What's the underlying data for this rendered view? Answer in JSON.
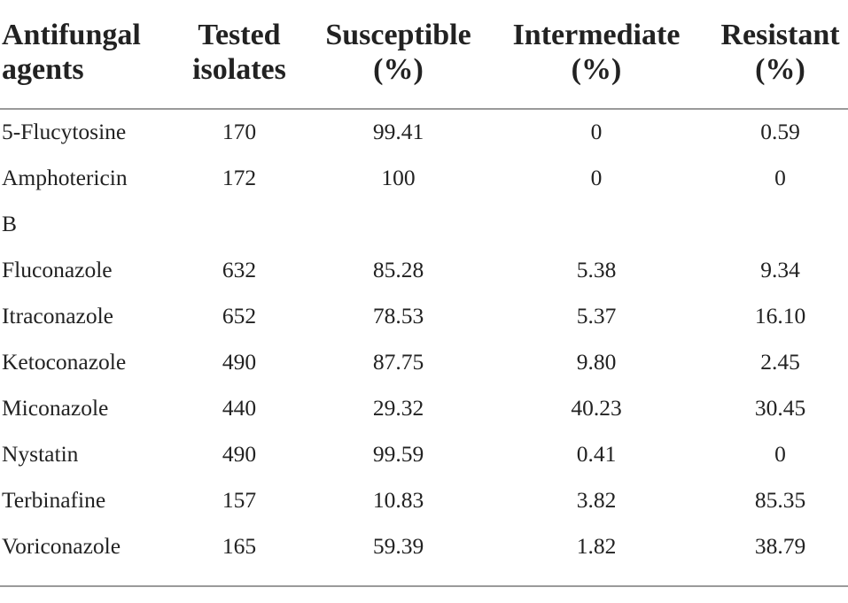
{
  "table": {
    "headers": [
      [
        "Antifungal",
        "agents"
      ],
      [
        "Tested",
        "isolates"
      ],
      [
        "Susceptible",
        "(%)"
      ],
      [
        "Intermediate",
        "(%)"
      ],
      [
        "Resistant",
        "(%)"
      ]
    ],
    "rows": [
      [
        "5-Flucytosine",
        "170",
        "99.41",
        "0",
        "0.59"
      ],
      [
        "Amphotericin",
        "172",
        "100",
        "0",
        "0"
      ],
      [
        "B",
        "",
        "",
        "",
        ""
      ],
      [
        "Fluconazole",
        "632",
        "85.28",
        "5.38",
        "9.34"
      ],
      [
        "Itraconazole",
        "652",
        "78.53",
        "5.37",
        "16.10"
      ],
      [
        "Ketoconazole",
        "490",
        "87.75",
        "9.80",
        "2.45"
      ],
      [
        "Miconazole",
        "440",
        "29.32",
        "40.23",
        "30.45"
      ],
      [
        "Nystatin",
        "490",
        "99.59",
        "0.41",
        "0"
      ],
      [
        "Terbinafine",
        "157",
        "10.83",
        "3.82",
        "85.35"
      ],
      [
        "Voriconazole",
        "165",
        "59.39",
        "1.82",
        "38.79"
      ]
    ]
  }
}
